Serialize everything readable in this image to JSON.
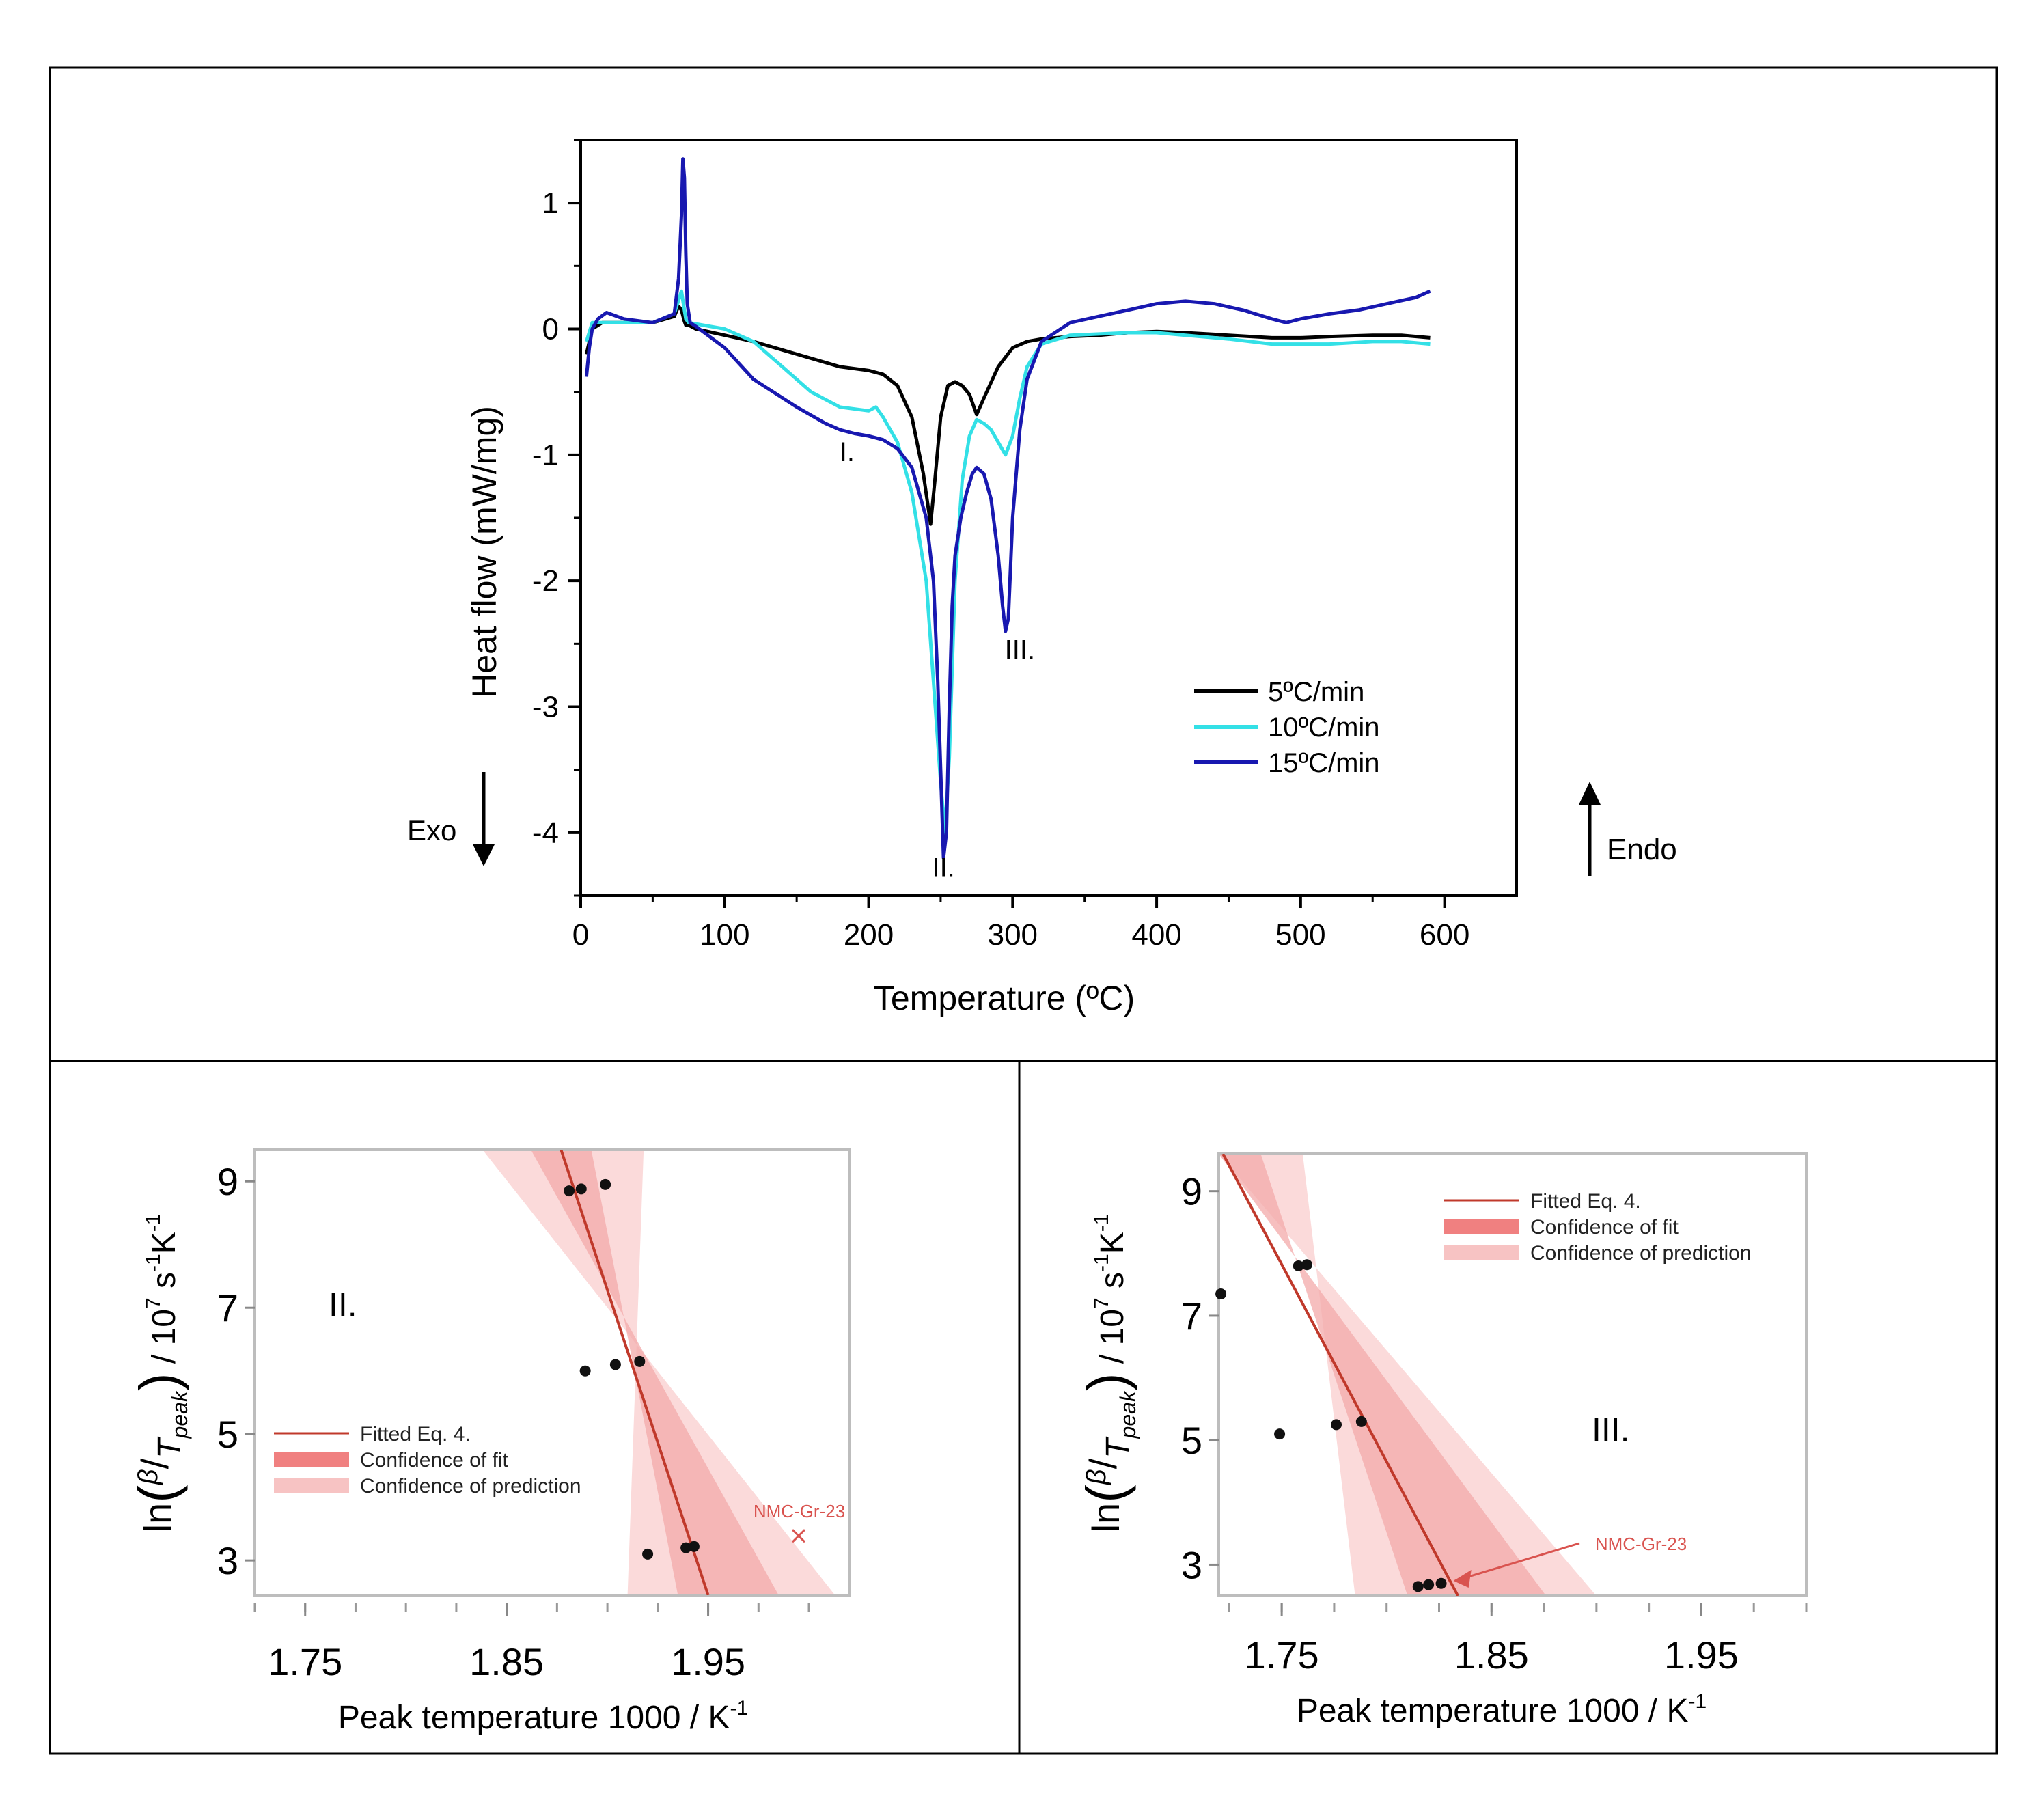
{
  "chart_data": [
    {
      "type": "line",
      "id": "dsc",
      "title": "",
      "xlabel": "Temperature (ºC)",
      "ylabel": "Heat flow (mW/mg)",
      "xlim": [
        0,
        650
      ],
      "ylim": [
        -4.5,
        1.5
      ],
      "xticks": [
        0,
        100,
        200,
        300,
        400,
        500,
        600
      ],
      "xtick_labels": [
        "0",
        "100",
        "200",
        "300",
        "400",
        "500",
        "600"
      ],
      "yticks": [
        1,
        0,
        -1,
        -2,
        -3,
        -4
      ],
      "ytick_labels": [
        "1",
        "0",
        "-1",
        "-2",
        "-3",
        "-4"
      ],
      "legend_position": "bottom-right",
      "series": [
        {
          "name": "5ºC/min",
          "color": "#000000",
          "x": [
            4,
            8,
            15,
            30,
            50,
            65,
            68,
            70,
            72,
            73,
            75,
            80,
            100,
            120,
            150,
            180,
            200,
            210,
            220,
            230,
            238,
            243,
            246,
            250,
            255,
            260,
            265,
            270,
            275,
            280,
            290,
            300,
            310,
            320,
            340,
            360,
            380,
            400,
            420,
            450,
            480,
            500,
            520,
            550,
            570,
            590
          ],
          "y": [
            -0.2,
            0.0,
            0.05,
            0.05,
            0.05,
            0.1,
            0.18,
            0.15,
            0.06,
            0.03,
            0.03,
            0.0,
            -0.05,
            -0.1,
            -0.2,
            -0.3,
            -0.33,
            -0.36,
            -0.45,
            -0.7,
            -1.15,
            -1.55,
            -1.2,
            -0.7,
            -0.45,
            -0.42,
            -0.45,
            -0.52,
            -0.68,
            -0.55,
            -0.3,
            -0.15,
            -0.1,
            -0.08,
            -0.06,
            -0.05,
            -0.03,
            -0.02,
            -0.03,
            -0.05,
            -0.07,
            -0.07,
            -0.06,
            -0.05,
            -0.05,
            -0.07
          ]
        },
        {
          "name": "10ºC/min",
          "color": "#33e0e6",
          "x": [
            4,
            8,
            15,
            30,
            50,
            65,
            70,
            72,
            73,
            75,
            80,
            100,
            120,
            140,
            160,
            180,
            200,
            205,
            210,
            220,
            230,
            240,
            245,
            250,
            253,
            256,
            260,
            265,
            270,
            275,
            280,
            285,
            290,
            295,
            300,
            305,
            310,
            320,
            340,
            360,
            380,
            400,
            420,
            450,
            480,
            500,
            520,
            550,
            570,
            590
          ],
          "y": [
            -0.1,
            0.05,
            0.05,
            0.05,
            0.05,
            0.12,
            0.3,
            0.15,
            0.08,
            0.05,
            0.04,
            0.0,
            -0.1,
            -0.3,
            -0.5,
            -0.62,
            -0.65,
            -0.62,
            -0.7,
            -0.9,
            -1.3,
            -2.0,
            -2.8,
            -3.6,
            -4.0,
            -3.4,
            -2.0,
            -1.2,
            -0.85,
            -0.72,
            -0.75,
            -0.8,
            -0.9,
            -1.0,
            -0.85,
            -0.55,
            -0.3,
            -0.12,
            -0.05,
            -0.04,
            -0.03,
            -0.03,
            -0.05,
            -0.08,
            -0.12,
            -0.12,
            -0.12,
            -0.1,
            -0.1,
            -0.12
          ]
        },
        {
          "name": "15ºC/min",
          "color": "#1818b0",
          "x": [
            4,
            6,
            8,
            12,
            18,
            30,
            50,
            65,
            68,
            70,
            71,
            72,
            73,
            74,
            76,
            80,
            100,
            120,
            150,
            170,
            180,
            190,
            200,
            210,
            220,
            230,
            240,
            245,
            248,
            250,
            252,
            254,
            256,
            258,
            260,
            264,
            268,
            272,
            275,
            280,
            285,
            290,
            293,
            295,
            297,
            300,
            305,
            310,
            320,
            340,
            360,
            380,
            400,
            420,
            440,
            460,
            480,
            490,
            500,
            520,
            540,
            560,
            580,
            590
          ],
          "y": [
            -0.38,
            -0.15,
            0.0,
            0.08,
            0.13,
            0.08,
            0.05,
            0.12,
            0.4,
            0.9,
            1.35,
            1.2,
            0.6,
            0.2,
            0.05,
            0.02,
            -0.15,
            -0.4,
            -0.62,
            -0.75,
            -0.8,
            -0.83,
            -0.85,
            -0.88,
            -0.95,
            -1.1,
            -1.5,
            -2.0,
            -2.8,
            -3.5,
            -4.2,
            -4.0,
            -3.0,
            -2.2,
            -1.8,
            -1.5,
            -1.3,
            -1.15,
            -1.1,
            -1.15,
            -1.35,
            -1.8,
            -2.2,
            -2.4,
            -2.3,
            -1.5,
            -0.8,
            -0.4,
            -0.1,
            0.05,
            0.1,
            0.15,
            0.2,
            0.22,
            0.2,
            0.15,
            0.08,
            0.05,
            0.08,
            0.12,
            0.15,
            0.2,
            0.25,
            0.3
          ]
        }
      ],
      "annotations": [
        {
          "text": "I.",
          "x": 185,
          "y": -1.05
        },
        {
          "text": "II.",
          "x": 252,
          "y": -4.35
        },
        {
          "text": "III.",
          "x": 305,
          "y": -2.62
        }
      ],
      "side_labels": {
        "exo": "Exo",
        "endo": "Endo"
      }
    },
    {
      "type": "scatter",
      "id": "kinetics_II",
      "panel_label": "II.",
      "xlabel": "Peak temperature 1000 / K",
      "xlabel_sup": "-1",
      "ylabel_note": "ln(β / T_peak) / 10^7 s^-1 K^-1",
      "xlim": [
        1.725,
        2.02
      ],
      "ylim": [
        2.45,
        9.5
      ],
      "xticks": [
        1.75,
        1.85,
        1.95
      ],
      "xtick_labels": [
        "1.75",
        "1.85",
        "1.95"
      ],
      "yticks": [
        9,
        7,
        5,
        3
      ],
      "ytick_labels": [
        "9",
        "7",
        "5",
        "3"
      ],
      "points": [
        {
          "x": 1.881,
          "y": 8.85
        },
        {
          "x": 1.887,
          "y": 8.88
        },
        {
          "x": 1.899,
          "y": 8.95
        },
        {
          "x": 1.889,
          "y": 6.0
        },
        {
          "x": 1.904,
          "y": 6.1
        },
        {
          "x": 1.916,
          "y": 6.15
        },
        {
          "x": 1.92,
          "y": 3.1
        },
        {
          "x": 1.939,
          "y": 3.2
        },
        {
          "x": 1.943,
          "y": 3.22
        }
      ],
      "outlier": {
        "label": "NMC-Gr-23",
        "x": 2.0,
        "y": 3.4
      },
      "fit_line": {
        "x": [
          1.877,
          1.95
        ],
        "y": [
          9.5,
          2.45
        ]
      },
      "confidence_fit": {
        "x_upper": [
          1.862,
          1.985
        ],
        "x_lower": [
          1.892,
          1.935
        ]
      },
      "confidence_prediction": {
        "x_upper": [
          1.838,
          2.013
        ],
        "x_lower": [
          1.918,
          1.91
        ]
      },
      "legend": [
        {
          "label": "Fitted Eq. 4.",
          "kind": "line",
          "color": "#c0392b"
        },
        {
          "label": "Confidence of fit",
          "kind": "band",
          "color": "#f08080"
        },
        {
          "label": "Confidence of prediction",
          "kind": "band",
          "color": "#f6bcbc"
        }
      ],
      "legend_position": "bottom-left"
    },
    {
      "type": "scatter",
      "id": "kinetics_III",
      "panel_label": "III.",
      "xlabel": "Peak temperature 1000 / K",
      "xlabel_sup": "-1",
      "ylabel_note": "ln(β / T_peak) / 10^7 s^-1 K^-1",
      "xlim": [
        1.72,
        2.0
      ],
      "ylim": [
        2.5,
        9.6
      ],
      "xticks": [
        1.75,
        1.85,
        1.95
      ],
      "xtick_labels": [
        "1.75",
        "1.85",
        "1.95"
      ],
      "yticks": [
        9,
        7,
        5,
        3
      ],
      "ytick_labels": [
        "9",
        "7",
        "5",
        "3"
      ],
      "points": [
        {
          "x": 1.721,
          "y": 7.35
        },
        {
          "x": 1.758,
          "y": 7.8
        },
        {
          "x": 1.762,
          "y": 7.82
        },
        {
          "x": 1.749,
          "y": 5.1
        },
        {
          "x": 1.776,
          "y": 5.25
        },
        {
          "x": 1.788,
          "y": 5.3
        },
        {
          "x": 1.815,
          "y": 2.65
        },
        {
          "x": 1.82,
          "y": 2.68
        },
        {
          "x": 1.826,
          "y": 2.7
        }
      ],
      "outlier": {
        "label": "NMC-Gr-23",
        "x": 1.828,
        "y": 2.72
      },
      "fit_line": {
        "x": [
          1.722,
          1.834
        ],
        "y": [
          9.6,
          2.5
        ]
      },
      "confidence_fit": {
        "x_upper": [
          1.72,
          1.876
        ],
        "x_lower": [
          1.74,
          1.81
        ]
      },
      "confidence_prediction": {
        "x_upper": [
          1.72,
          1.9
        ],
        "x_lower": [
          1.76,
          1.785
        ]
      },
      "legend": [
        {
          "label": "Fitted Eq. 4.",
          "kind": "line",
          "color": "#c0392b"
        },
        {
          "label": "Confidence of fit",
          "kind": "band",
          "color": "#f08080"
        },
        {
          "label": "Confidence of prediction",
          "kind": "band",
          "color": "#f6bcbc"
        }
      ],
      "legend_position": "top-right"
    }
  ]
}
